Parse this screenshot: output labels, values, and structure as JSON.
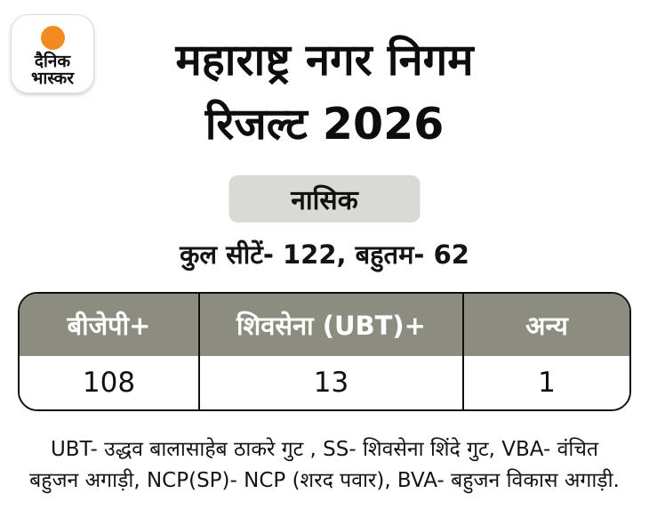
{
  "brand": {
    "logo_line1": "दैनिक",
    "logo_line2": "भास्कर",
    "logo_dot_color": "#f18b21"
  },
  "header": {
    "title_line1": "महाराष्ट्र नगर निगम",
    "title_line2": "रिजल्ट 2026",
    "city_badge": "नासिक",
    "seats_summary": "कुल सीटें- 122, बहुतम- 62"
  },
  "results_table": {
    "header_bg": "#8c8c80",
    "columns": [
      "बीजेपी+",
      "शिवसेना (UBT)+",
      "अन्य"
    ],
    "values": [
      "108",
      "13",
      "1"
    ]
  },
  "footnote": {
    "line1": "UBT- उद्धव बालासाहेब ठाकरे गुट , SS- शिवसेना शिंदे गुट, VBA- वंचित",
    "line2": "बहुजन अगाड़ी, NCP(SP)- NCP (शरद पवार), BVA- बहुजन विकास अगाड़ी."
  },
  "chart_data": {
    "type": "table",
    "title": "महाराष्ट्र नगर निगम रिजल्ट 2026",
    "subtitle": "नासिक",
    "note": "कुल सीटें- 122, बहुतम- 62",
    "total_seats": 122,
    "majority_mark": 62,
    "categories": [
      "बीजेपी+",
      "शिवसेना (UBT)+",
      "अन्य"
    ],
    "values": [
      108,
      13,
      1
    ]
  }
}
